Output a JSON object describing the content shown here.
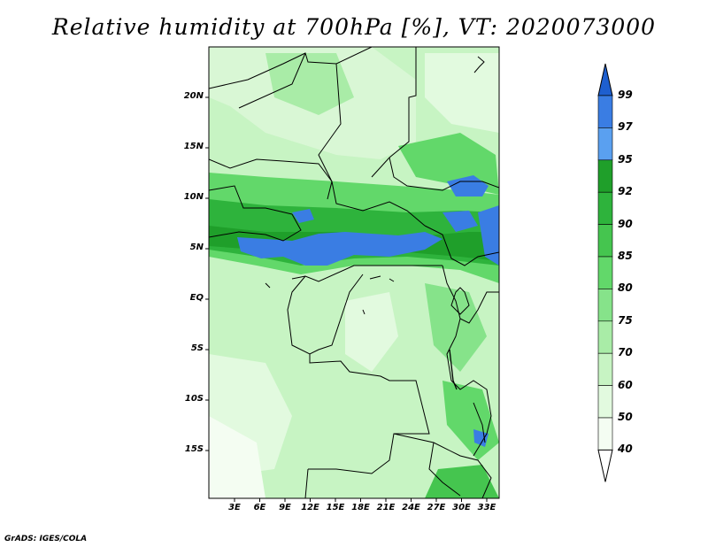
{
  "title": "Relative humidity at 700hPa [%], VT: 2020073000",
  "credit": "GrADS: IGES/COLA",
  "map": {
    "lat_labels": [
      "20N",
      "15N",
      "10N",
      "5N",
      "EQ",
      "5S",
      "10S",
      "15S"
    ],
    "lon_labels": [
      "3E",
      "6E",
      "9E",
      "12E",
      "15E",
      "18E",
      "21E",
      "24E",
      "27E",
      "30E",
      "33E"
    ],
    "lat_range": [
      -20,
      25
    ],
    "lon_range": [
      0,
      35
    ]
  },
  "colorbar": {
    "levels": [
      "99",
      "97",
      "95",
      "92",
      "90",
      "85",
      "80",
      "75",
      "70",
      "60",
      "50",
      "40"
    ],
    "colors": [
      "#1e5fcf",
      "#3a7de3",
      "#5aa0f0",
      "#1f9f2a",
      "#2eb33c",
      "#45c54f",
      "#62d86a",
      "#86e38a",
      "#a9eca7",
      "#c7f4c3",
      "#e2fadf",
      "#f4fdf2"
    ]
  }
}
